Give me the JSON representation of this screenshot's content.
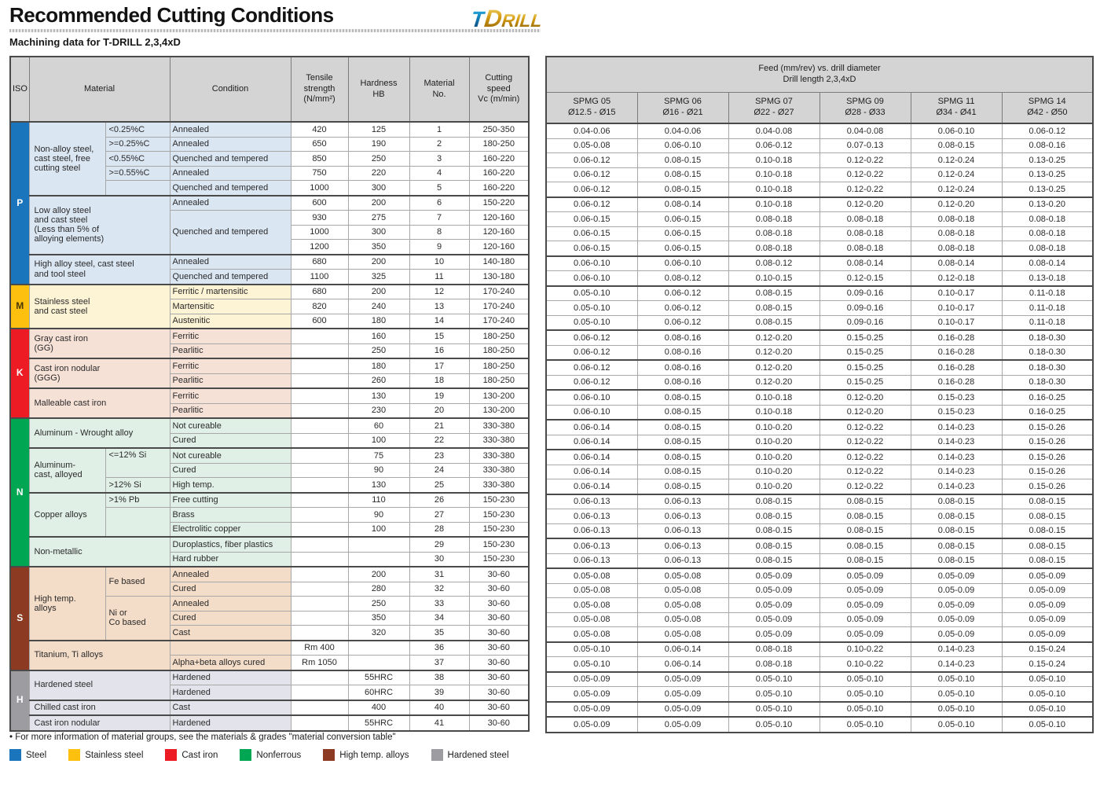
{
  "header": {
    "title": "Recommended Cutting Conditions",
    "subtitle": "Machining data for T-DRILL 2,3,4xD",
    "logo": {
      "t": "T",
      "d": "D",
      "rill": "RILL"
    }
  },
  "left_table": {
    "headers": {
      "iso": "ISO",
      "material": "Material",
      "condition": "Condition",
      "tensile": "Tensile\nstrength\n(N/mm²)",
      "hardness": "Hardness\nHB",
      "material_no": "Material\nNo.",
      "cutting_speed": "Cutting\nspeed\nVc (m/min)"
    },
    "iso_groups": [
      {
        "code": "P",
        "rows": [
          1,
          11
        ],
        "color": "#1b75bc",
        "text_color": "#ffffff",
        "tint": "#dbe6f3"
      },
      {
        "code": "M",
        "rows": [
          12,
          14
        ],
        "color": "#fdc00f",
        "text_color": "#4a3800",
        "tint": "#fdf3d5"
      },
      {
        "code": "K",
        "rows": [
          15,
          20
        ],
        "color": "#ed1c24",
        "text_color": "#ffffff",
        "tint": "#f6e1d7"
      },
      {
        "code": "N",
        "rows": [
          21,
          30
        ],
        "color": "#00a651",
        "text_color": "#ffffff",
        "tint": "#e1f0e6"
      },
      {
        "code": "S",
        "rows": [
          31,
          37
        ],
        "color": "#8c3b22",
        "text_color": "#ffffff",
        "tint": "#f4ddc8"
      },
      {
        "code": "H",
        "rows": [
          38,
          41
        ],
        "color": "#9c9ca1",
        "text_color": "#ffffff",
        "tint": "#e3e4eb",
        "textured": true
      }
    ],
    "materials": [
      {
        "label": "Non-alloy steel,\ncast steel, free\ncutting steel",
        "rows": [
          1,
          5
        ],
        "subs": [
          {
            "text": "<0.25%C",
            "rows": [
              1,
              1
            ]
          },
          {
            "text": ">=0.25%C",
            "rows": [
              2,
              2
            ]
          },
          {
            "text": "<0.55%C",
            "rows": [
              3,
              3
            ]
          },
          {
            "text": ">=0.55%C",
            "rows": [
              4,
              4
            ]
          },
          {
            "text": "",
            "rows": [
              5,
              5
            ]
          }
        ]
      },
      {
        "label": "Low alloy steel\nand cast steel\n(Less than 5% of\nalloying elements)",
        "rows": [
          6,
          9
        ]
      },
      {
        "label": "High alloy steel, cast steel\nand tool steel",
        "rows": [
          10,
          11
        ]
      },
      {
        "label": "Stainless steel\nand cast steel",
        "rows": [
          12,
          14
        ]
      },
      {
        "label": "Gray cast iron\n(GG)",
        "rows": [
          15,
          16
        ]
      },
      {
        "label": "Cast iron nodular\n(GGG)",
        "rows": [
          17,
          18
        ]
      },
      {
        "label": "Malleable cast iron",
        "rows": [
          19,
          20
        ]
      },
      {
        "label": "Aluminum - Wrought alloy",
        "rows": [
          21,
          22
        ]
      },
      {
        "label": "Aluminum-\ncast, alloyed",
        "rows": [
          23,
          25
        ],
        "subs": [
          {
            "text": "<=12% Si",
            "rows": [
              23,
              24
            ],
            "valign": "top"
          },
          {
            "text": ">12% Si",
            "rows": [
              25,
              25
            ]
          }
        ]
      },
      {
        "label": "Copper alloys",
        "rows": [
          26,
          28
        ],
        "subs": [
          {
            "text": ">1% Pb",
            "rows": [
              26,
              26
            ]
          },
          {
            "text": "",
            "rows": [
              27,
              28
            ]
          }
        ]
      },
      {
        "label": "Non-metallic",
        "rows": [
          29,
          30
        ]
      },
      {
        "label": "High temp.\nalloys",
        "rows": [
          31,
          35
        ],
        "subs": [
          {
            "text": "Fe based",
            "rows": [
              31,
              32
            ]
          },
          {
            "text": "Ni or\nCo based",
            "rows": [
              33,
              35
            ]
          }
        ]
      },
      {
        "label": "Titanium, Ti alloys",
        "rows": [
          36,
          37
        ]
      },
      {
        "label": "Hardened steel",
        "rows": [
          38,
          39
        ]
      },
      {
        "label": "Chilled cast iron",
        "rows": [
          40,
          40
        ]
      },
      {
        "label": "Cast iron nodular",
        "rows": [
          41,
          41
        ]
      }
    ],
    "rows": [
      {
        "no": "1",
        "cond": "Annealed",
        "tensile": "420",
        "hb": "125",
        "vc": "250-350",
        "feeds": [
          "0.04-0.06",
          "0.04-0.06",
          "0.04-0.08",
          "0.04-0.08",
          "0.06-0.10",
          "0.06-0.12"
        ]
      },
      {
        "no": "2",
        "cond": "Annealed",
        "tensile": "650",
        "hb": "190",
        "vc": "180-250",
        "feeds": [
          "0.05-0.08",
          "0.06-0.10",
          "0.06-0.12",
          "0.07-0.13",
          "0.08-0.15",
          "0.08-0.16"
        ]
      },
      {
        "no": "3",
        "cond": "Quenched and tempered",
        "tensile": "850",
        "hb": "250",
        "vc": "160-220",
        "feeds": [
          "0.06-0.12",
          "0.08-0.15",
          "0.10-0.18",
          "0.12-0.22",
          "0.12-0.24",
          "0.13-0.25"
        ]
      },
      {
        "no": "4",
        "cond": "Annealed",
        "tensile": "750",
        "hb": "220",
        "vc": "160-220",
        "feeds": [
          "0.06-0.12",
          "0.08-0.15",
          "0.10-0.18",
          "0.12-0.22",
          "0.12-0.24",
          "0.13-0.25"
        ]
      },
      {
        "no": "5",
        "cond": "Quenched and tempered",
        "tensile": "1000",
        "hb": "300",
        "vc": "160-220",
        "feeds": [
          "0.06-0.12",
          "0.08-0.15",
          "0.10-0.18",
          "0.12-0.22",
          "0.12-0.24",
          "0.13-0.25"
        ]
      },
      {
        "no": "6",
        "cond": "Annealed",
        "tensile": "600",
        "hb": "200",
        "vc": "150-220",
        "feeds": [
          "0.06-0.12",
          "0.08-0.14",
          "0.10-0.18",
          "0.12-0.20",
          "0.12-0.20",
          "0.13-0.20"
        ]
      },
      {
        "no": "7",
        "cond": "Quenched and tempered",
        "cond_span": 3,
        "tensile": "930",
        "hb": "275",
        "vc": "120-160",
        "feeds": [
          "0.06-0.15",
          "0.06-0.15",
          "0.08-0.18",
          "0.08-0.18",
          "0.08-0.18",
          "0.08-0.18"
        ]
      },
      {
        "no": "8",
        "cond": null,
        "tensile": "1000",
        "hb": "300",
        "vc": "120-160",
        "feeds": [
          "0.06-0.15",
          "0.06-0.15",
          "0.08-0.18",
          "0.08-0.18",
          "0.08-0.18",
          "0.08-0.18"
        ]
      },
      {
        "no": "9",
        "cond": null,
        "tensile": "1200",
        "hb": "350",
        "vc": "120-160",
        "feeds": [
          "0.06-0.15",
          "0.06-0.15",
          "0.08-0.18",
          "0.08-0.18",
          "0.08-0.18",
          "0.08-0.18"
        ]
      },
      {
        "no": "10",
        "cond": "Annealed",
        "tensile": "680",
        "hb": "200",
        "vc": "140-180",
        "feeds": [
          "0.06-0.10",
          "0.06-0.10",
          "0.08-0.12",
          "0.08-0.14",
          "0.08-0.14",
          "0.08-0.14"
        ]
      },
      {
        "no": "11",
        "cond": "Quenched and tempered",
        "tensile": "1100",
        "hb": "325",
        "vc": "130-180",
        "feeds": [
          "0.06-0.10",
          "0.08-0.12",
          "0.10-0.15",
          "0.12-0.15",
          "0.12-0.18",
          "0.13-0.18"
        ]
      },
      {
        "no": "12",
        "cond": "Ferritic / martensitic",
        "tensile": "680",
        "hb": "200",
        "vc": "170-240",
        "feeds": [
          "0.05-0.10",
          "0.06-0.12",
          "0.08-0.15",
          "0.09-0.16",
          "0.10-0.17",
          "0.11-0.18"
        ]
      },
      {
        "no": "13",
        "cond": "Martensitic",
        "tensile": "820",
        "hb": "240",
        "vc": "170-240",
        "feeds": [
          "0.05-0.10",
          "0.06-0.12",
          "0.08-0.15",
          "0.09-0.16",
          "0.10-0.17",
          "0.11-0.18"
        ]
      },
      {
        "no": "14",
        "cond": "Austenitic",
        "tensile": "600",
        "hb": "180",
        "vc": "170-240",
        "feeds": [
          "0.05-0.10",
          "0.06-0.12",
          "0.08-0.15",
          "0.09-0.16",
          "0.10-0.17",
          "0.11-0.18"
        ]
      },
      {
        "no": "15",
        "cond": "Ferritic",
        "tensile": "",
        "hb": "160",
        "vc": "180-250",
        "feeds": [
          "0.06-0.12",
          "0.08-0.16",
          "0.12-0.20",
          "0.15-0.25",
          "0.16-0.28",
          "0.18-0.30"
        ]
      },
      {
        "no": "16",
        "cond": "Pearlitic",
        "tensile": "",
        "hb": "250",
        "vc": "180-250",
        "feeds": [
          "0.06-0.12",
          "0.08-0.16",
          "0.12-0.20",
          "0.15-0.25",
          "0.16-0.28",
          "0.18-0.30"
        ]
      },
      {
        "no": "17",
        "cond": "Ferritic",
        "tensile": "",
        "hb": "180",
        "vc": "180-250",
        "feeds": [
          "0.06-0.12",
          "0.08-0.16",
          "0.12-0.20",
          "0.15-0.25",
          "0.16-0.28",
          "0.18-0.30"
        ]
      },
      {
        "no": "18",
        "cond": "Pearlitic",
        "tensile": "",
        "hb": "260",
        "vc": "180-250",
        "feeds": [
          "0.06-0.12",
          "0.08-0.16",
          "0.12-0.20",
          "0.15-0.25",
          "0.16-0.28",
          "0.18-0.30"
        ]
      },
      {
        "no": "19",
        "cond": "Ferritic",
        "tensile": "",
        "hb": "130",
        "vc": "130-200",
        "feeds": [
          "0.06-0.10",
          "0.08-0.15",
          "0.10-0.18",
          "0.12-0.20",
          "0.15-0.23",
          "0.16-0.25"
        ]
      },
      {
        "no": "20",
        "cond": "Pearlitic",
        "tensile": "",
        "hb": "230",
        "vc": "130-200",
        "feeds": [
          "0.06-0.10",
          "0.08-0.15",
          "0.10-0.18",
          "0.12-0.20",
          "0.15-0.23",
          "0.16-0.25"
        ]
      },
      {
        "no": "21",
        "cond": "Not cureable",
        "tensile": "",
        "hb": "60",
        "vc": "330-380",
        "feeds": [
          "0.06-0.14",
          "0.08-0.15",
          "0.10-0.20",
          "0.12-0.22",
          "0.14-0.23",
          "0.15-0.26"
        ]
      },
      {
        "no": "22",
        "cond": "Cured",
        "tensile": "",
        "hb": "100",
        "vc": "330-380",
        "feeds": [
          "0.06-0.14",
          "0.08-0.15",
          "0.10-0.20",
          "0.12-0.22",
          "0.14-0.23",
          "0.15-0.26"
        ]
      },
      {
        "no": "23",
        "cond": "Not cureable",
        "tensile": "",
        "hb": "75",
        "vc": "330-380",
        "feeds": [
          "0.06-0.14",
          "0.08-0.15",
          "0.10-0.20",
          "0.12-0.22",
          "0.14-0.23",
          "0.15-0.26"
        ]
      },
      {
        "no": "24",
        "cond": "Cured",
        "tensile": "",
        "hb": "90",
        "vc": "330-380",
        "feeds": [
          "0.06-0.14",
          "0.08-0.15",
          "0.10-0.20",
          "0.12-0.22",
          "0.14-0.23",
          "0.15-0.26"
        ]
      },
      {
        "no": "25",
        "cond": "High temp.",
        "tensile": "",
        "hb": "130",
        "vc": "330-380",
        "feeds": [
          "0.06-0.14",
          "0.08-0.15",
          "0.10-0.20",
          "0.12-0.22",
          "0.14-0.23",
          "0.15-0.26"
        ]
      },
      {
        "no": "26",
        "cond": "Free cutting",
        "tensile": "",
        "hb": "110",
        "vc": "150-230",
        "feeds": [
          "0.06-0.13",
          "0.06-0.13",
          "0.08-0.15",
          "0.08-0.15",
          "0.08-0.15",
          "0.08-0.15"
        ]
      },
      {
        "no": "27",
        "cond": "Brass",
        "tensile": "",
        "hb": "90",
        "vc": "150-230",
        "feeds": [
          "0.06-0.13",
          "0.06-0.13",
          "0.08-0.15",
          "0.08-0.15",
          "0.08-0.15",
          "0.08-0.15"
        ]
      },
      {
        "no": "28",
        "cond": "Electrolitic copper",
        "tensile": "",
        "hb": "100",
        "vc": "150-230",
        "feeds": [
          "0.06-0.13",
          "0.06-0.13",
          "0.08-0.15",
          "0.08-0.15",
          "0.08-0.15",
          "0.08-0.15"
        ]
      },
      {
        "no": "29",
        "cond": "Duroplastics, fiber plastics",
        "tensile": "",
        "hb": "",
        "vc": "150-230",
        "feeds": [
          "0.06-0.13",
          "0.06-0.13",
          "0.08-0.15",
          "0.08-0.15",
          "0.08-0.15",
          "0.08-0.15"
        ]
      },
      {
        "no": "30",
        "cond": "Hard rubber",
        "tensile": "",
        "hb": "",
        "vc": "150-230",
        "feeds": [
          "0.06-0.13",
          "0.06-0.13",
          "0.08-0.15",
          "0.08-0.15",
          "0.08-0.15",
          "0.08-0.15"
        ]
      },
      {
        "no": "31",
        "cond": "Annealed",
        "tensile": "",
        "hb": "200",
        "vc": "30-60",
        "feeds": [
          "0.05-0.08",
          "0.05-0.08",
          "0.05-0.09",
          "0.05-0.09",
          "0.05-0.09",
          "0.05-0.09"
        ]
      },
      {
        "no": "32",
        "cond": "Cured",
        "tensile": "",
        "hb": "280",
        "vc": "30-60",
        "feeds": [
          "0.05-0.08",
          "0.05-0.08",
          "0.05-0.09",
          "0.05-0.09",
          "0.05-0.09",
          "0.05-0.09"
        ]
      },
      {
        "no": "33",
        "cond": "Annealed",
        "tensile": "",
        "hb": "250",
        "vc": "30-60",
        "feeds": [
          "0.05-0.08",
          "0.05-0.08",
          "0.05-0.09",
          "0.05-0.09",
          "0.05-0.09",
          "0.05-0.09"
        ]
      },
      {
        "no": "34",
        "cond": "Cured",
        "tensile": "",
        "hb": "350",
        "vc": "30-60",
        "feeds": [
          "0.05-0.08",
          "0.05-0.08",
          "0.05-0.09",
          "0.05-0.09",
          "0.05-0.09",
          "0.05-0.09"
        ]
      },
      {
        "no": "35",
        "cond": "Cast",
        "tensile": "",
        "hb": "320",
        "vc": "30-60",
        "feeds": [
          "0.05-0.08",
          "0.05-0.08",
          "0.05-0.09",
          "0.05-0.09",
          "0.05-0.09",
          "0.05-0.09"
        ]
      },
      {
        "no": "36",
        "cond": "",
        "tensile": "Rm 400",
        "hb": "",
        "vc": "30-60",
        "feeds": [
          "0.05-0.10",
          "0.06-0.14",
          "0.08-0.18",
          "0.10-0.22",
          "0.14-0.23",
          "0.15-0.24"
        ]
      },
      {
        "no": "37",
        "cond": "Alpha+beta alloys cured",
        "tensile": "Rm 1050",
        "hb": "",
        "vc": "30-60",
        "feeds": [
          "0.05-0.10",
          "0.06-0.14",
          "0.08-0.18",
          "0.10-0.22",
          "0.14-0.23",
          "0.15-0.24"
        ]
      },
      {
        "no": "38",
        "cond": "Hardened",
        "tensile": "",
        "hb": "55HRC",
        "vc": "30-60",
        "feeds": [
          "0.05-0.09",
          "0.05-0.09",
          "0.05-0.10",
          "0.05-0.10",
          "0.05-0.10",
          "0.05-0.10"
        ]
      },
      {
        "no": "39",
        "cond": "Hardened",
        "tensile": "",
        "hb": "60HRC",
        "vc": "30-60",
        "feeds": [
          "0.05-0.09",
          "0.05-0.09",
          "0.05-0.10",
          "0.05-0.10",
          "0.05-0.10",
          "0.05-0.10"
        ]
      },
      {
        "no": "40",
        "cond": "Cast",
        "tensile": "",
        "hb": "400",
        "vc": "30-60",
        "feeds": [
          "0.05-0.09",
          "0.05-0.09",
          "0.05-0.10",
          "0.05-0.10",
          "0.05-0.10",
          "0.05-0.10"
        ]
      },
      {
        "no": "41",
        "cond": "Hardened",
        "tensile": "",
        "hb": "55HRC",
        "vc": "30-60",
        "feeds": [
          "0.05-0.09",
          "0.05-0.09",
          "0.05-0.10",
          "0.05-0.10",
          "0.05-0.10",
          "0.05-0.10"
        ]
      }
    ]
  },
  "right_table": {
    "title_line1": "Feed (mm/rev) vs. drill diameter",
    "title_line2": "Drill length 2,3,4xD",
    "columns": [
      {
        "name": "SPMG 05",
        "range": "Ø12.5 - Ø15"
      },
      {
        "name": "SPMG 06",
        "range": "Ø16 - Ø21"
      },
      {
        "name": "SPMG 07",
        "range": "Ø22 - Ø27"
      },
      {
        "name": "SPMG 09",
        "range": "Ø28 - Ø33"
      },
      {
        "name": "SPMG 11",
        "range": "Ø34 - Ø41"
      },
      {
        "name": "SPMG 14",
        "range": "Ø42 - Ø50"
      }
    ]
  },
  "footer": {
    "note": "• For more information of material groups, see the materials & grades \"material conversion table\"",
    "legend": [
      {
        "label": "Steel",
        "color": "#1b75bc"
      },
      {
        "label": "Stainless steel",
        "color": "#fdc00f"
      },
      {
        "label": "Cast iron",
        "color": "#ed1c24"
      },
      {
        "label": "Nonferrous",
        "color": "#00a651"
      },
      {
        "label": "High temp. alloys",
        "color": "#8c3b22"
      },
      {
        "label": "Hardened steel",
        "color": "#9c9ca1",
        "textured": true
      }
    ]
  }
}
